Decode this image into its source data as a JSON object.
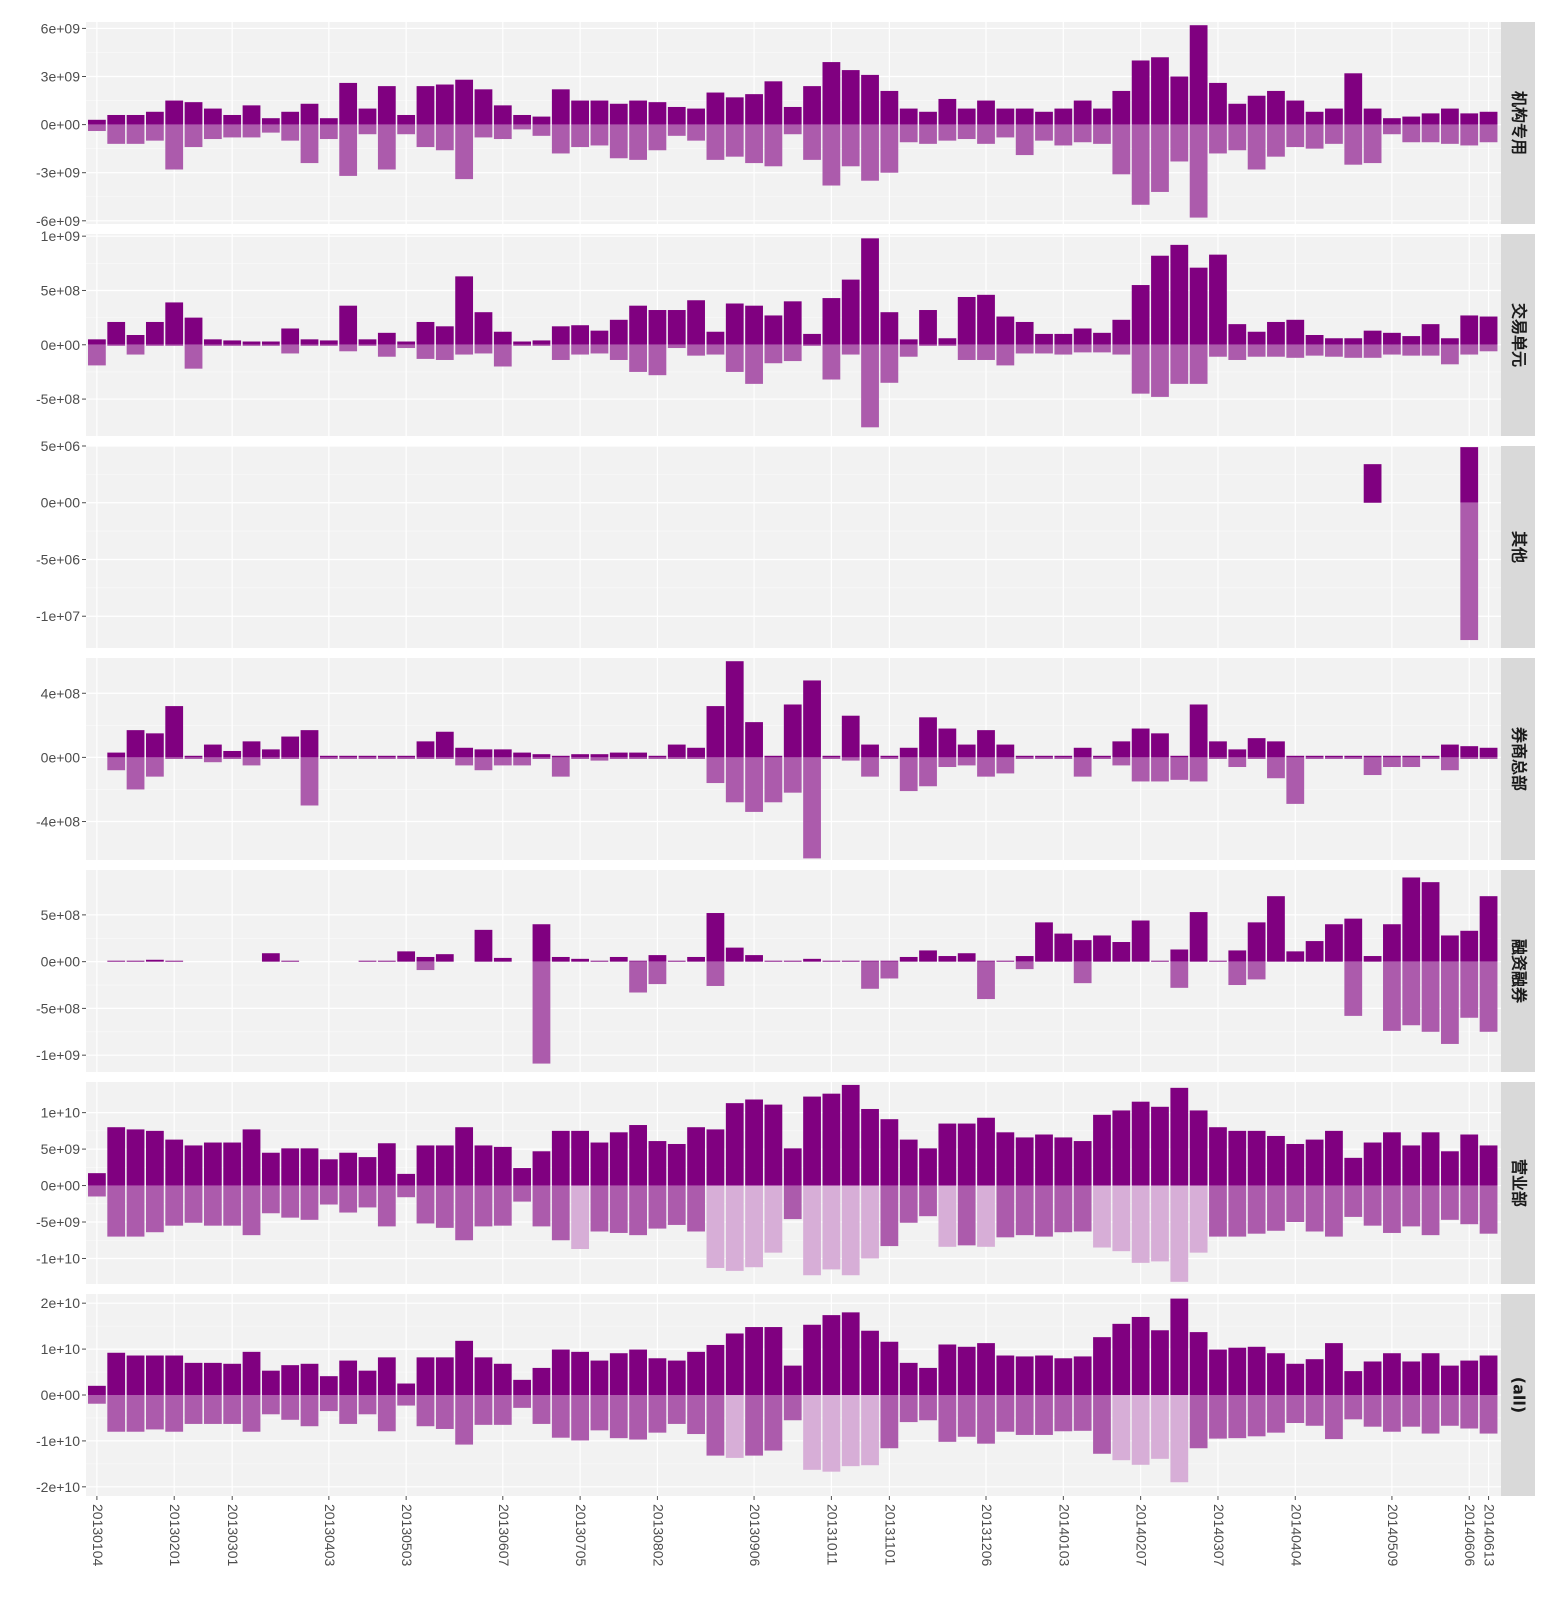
{
  "title": "",
  "colors": {
    "buy": "#800080",
    "sell": "#ac5bac",
    "sell_light": "#d7aed7",
    "panel_bg": "#f2f2f2",
    "strip_bg": "#d9d9d9"
  },
  "chart_data": {
    "type": "bar",
    "layout": "faceted",
    "xlabel": "",
    "ylabel": "",
    "grid": true,
    "x_tick_labels": [
      "20130104",
      "20130201",
      "20130301",
      "20130403",
      "20130503",
      "20130607",
      "20130705",
      "20130802",
      "20130906",
      "20131011",
      "20131101",
      "20131206",
      "20140103",
      "20140207",
      "20140307",
      "20140404",
      "20140509",
      "20140606",
      "20140613"
    ],
    "facets": [
      {
        "name": "机构专用",
        "y_tick_labels": [
          "6e+09",
          "3e+09",
          "0e+00",
          "-3e+09",
          "-6e+09"
        ],
        "y_tick_values": [
          6000000000.0,
          3000000000.0,
          0,
          -3000000000.0,
          -6000000000.0
        ],
        "ylim": [
          -6200000000.0,
          6400000000.0
        ],
        "buy_e9": [
          0.3,
          0.6,
          0.6,
          0.8,
          1.5,
          1.4,
          1.0,
          0.6,
          1.2,
          0.4,
          0.8,
          1.3,
          0.4,
          2.6,
          1.0,
          2.4,
          0.6,
          2.4,
          2.5,
          2.8,
          2.2,
          1.2,
          0.6,
          0.5,
          2.2,
          1.5,
          1.5,
          1.3,
          1.5,
          1.4,
          1.1,
          1.0,
          2.0,
          1.7,
          1.9,
          2.7,
          1.1,
          2.4,
          3.9,
          3.4,
          3.1,
          2.1,
          1.0,
          0.8,
          1.6,
          1.0,
          1.5,
          1.0,
          1.0,
          0.8,
          1.0,
          1.5,
          1.0,
          2.1,
          4.0,
          4.2,
          3.0,
          6.2,
          2.6,
          1.3,
          1.8,
          2.1,
          1.5,
          0.8,
          1.0,
          3.2,
          1.0,
          0.4,
          0.5,
          0.7,
          1.0,
          0.7,
          0.8
        ],
        "sell_e9": [
          0.4,
          1.2,
          1.2,
          1.0,
          2.8,
          1.4,
          0.9,
          0.8,
          0.8,
          0.5,
          1.0,
          2.4,
          0.9,
          3.2,
          0.6,
          2.8,
          0.6,
          1.4,
          1.6,
          3.4,
          0.8,
          0.9,
          0.3,
          0.7,
          1.8,
          1.4,
          1.3,
          2.1,
          2.2,
          1.6,
          0.7,
          1.0,
          2.2,
          2.0,
          2.4,
          2.6,
          0.6,
          2.2,
          3.8,
          2.6,
          3.5,
          3.0,
          1.1,
          1.2,
          1.0,
          0.9,
          1.2,
          0.8,
          1.9,
          1.0,
          1.3,
          1.1,
          1.2,
          3.1,
          5.0,
          4.2,
          2.3,
          5.8,
          1.8,
          1.6,
          2.8,
          2.0,
          1.4,
          1.5,
          1.2,
          2.5,
          2.4,
          0.6,
          1.1,
          1.1,
          1.2,
          1.3,
          1.1
        ]
      },
      {
        "name": "交易单元",
        "y_tick_labels": [
          "1e+09",
          "5e+08",
          "0e+00",
          "-5e+08"
        ],
        "y_tick_values": [
          1000000000.0,
          500000000.0,
          0,
          -500000000.0
        ],
        "ylim": [
          -840000000.0,
          1020000000.0
        ],
        "buy_e8": [
          0.5,
          2.1,
          0.9,
          2.1,
          3.9,
          2.5,
          0.5,
          0.4,
          0.3,
          0.3,
          1.5,
          0.5,
          0.4,
          3.6,
          0.5,
          1.1,
          0.3,
          2.1,
          1.7,
          6.3,
          3.0,
          1.2,
          0.3,
          0.4,
          1.7,
          1.8,
          1.3,
          2.3,
          3.6,
          3.2,
          3.2,
          4.1,
          1.2,
          3.8,
          3.6,
          2.7,
          4.0,
          1.0,
          4.3,
          6.0,
          9.8,
          3.0,
          0.5,
          3.2,
          0.6,
          4.4,
          4.6,
          2.6,
          2.1,
          1.0,
          1.0,
          1.5,
          1.1,
          2.3,
          5.5,
          8.2,
          9.2,
          7.1,
          8.3,
          1.9,
          1.2,
          2.1,
          2.3,
          0.9,
          0.6,
          0.6,
          1.3,
          1.1,
          0.8,
          1.9,
          0.6,
          2.7,
          2.6
        ],
        "sell_e8": [
          1.9,
          0.1,
          0.9,
          0.1,
          0.1,
          2.2,
          0.1,
          0.1,
          0.1,
          0.1,
          0.8,
          0.1,
          0.1,
          0.6,
          0.1,
          1.1,
          0.3,
          1.3,
          1.4,
          0.9,
          0.8,
          2.0,
          0.1,
          0.1,
          1.4,
          0.9,
          0.8,
          1.4,
          2.5,
          2.8,
          0.3,
          1.0,
          0.9,
          2.5,
          3.6,
          1.7,
          1.5,
          0.1,
          3.2,
          0.9,
          7.6,
          3.5,
          1.1,
          0.1,
          0.1,
          1.4,
          1.4,
          1.9,
          0.8,
          0.8,
          0.9,
          0.7,
          0.7,
          0.9,
          4.5,
          4.8,
          3.6,
          3.6,
          1.1,
          1.4,
          1.1,
          1.1,
          1.2,
          1.0,
          1.1,
          1.2,
          1.2,
          0.9,
          1.0,
          1.0,
          1.8,
          0.9,
          0.6
        ]
      },
      {
        "name": "其他",
        "y_tick_labels": [
          "5e+06",
          "0e+00",
          "-5e+06",
          "-1e+07"
        ],
        "y_tick_values": [
          5000000.0,
          0,
          -5000000.0,
          -10000000.0
        ],
        "ylim": [
          -12800000.0,
          5000000.0
        ],
        "bars": [
          {
            "index": 66,
            "buy_e6": 3.4,
            "sell_e6": 0
          },
          {
            "index": 71,
            "buy_e6": 4.9,
            "sell_e6": 12.1
          }
        ]
      },
      {
        "name": "券商总部",
        "y_tick_labels": [
          "4e+08",
          "0e+00",
          "-4e+08"
        ],
        "y_tick_values": [
          400000000.0,
          0,
          -400000000.0
        ],
        "ylim": [
          -640000000.0,
          620000000.0
        ],
        "buy_e8": [
          0,
          0.3,
          1.7,
          1.5,
          3.2,
          0.1,
          0.8,
          0.4,
          1.0,
          0.5,
          1.3,
          1.7,
          0.1,
          0.1,
          0.1,
          0.1,
          0.1,
          1.0,
          1.6,
          0.6,
          0.5,
          0.5,
          0.3,
          0.2,
          0.1,
          0.2,
          0.2,
          0.3,
          0.3,
          0.1,
          0.8,
          0.6,
          3.2,
          6.0,
          2.2,
          0.1,
          3.3,
          4.8,
          0.1,
          2.6,
          0.8,
          0.1,
          0.6,
          2.5,
          1.8,
          0.8,
          1.7,
          0.8,
          0.1,
          0.1,
          0.1,
          0.6,
          0.1,
          1.0,
          1.8,
          1.5,
          0.1,
          3.3,
          1.0,
          0.5,
          1.2,
          1.0,
          0.1,
          0.1,
          0.1,
          0.1,
          0.1,
          0.1,
          0.1,
          0.1,
          0.8,
          0.7,
          0.6
        ],
        "sell_e8": [
          0,
          0.8,
          2.0,
          1.2,
          0.1,
          0.1,
          0.3,
          0.1,
          0.5,
          0.1,
          0.1,
          3.0,
          0.1,
          0.1,
          0.1,
          0.1,
          0.1,
          0.1,
          0.1,
          0.5,
          0.8,
          0.5,
          0.5,
          0.1,
          1.2,
          0.1,
          0.2,
          0.1,
          0.1,
          0.1,
          0.1,
          0.1,
          1.6,
          2.8,
          3.4,
          2.8,
          2.2,
          6.3,
          0.1,
          0.2,
          1.2,
          0.1,
          2.1,
          1.8,
          0.6,
          0.5,
          1.2,
          1.0,
          0.1,
          0.1,
          0.1,
          1.2,
          0.1,
          0.5,
          1.5,
          1.5,
          1.4,
          1.5,
          0.1,
          0.6,
          0.1,
          1.3,
          2.9,
          0.1,
          0.1,
          0.1,
          1.1,
          0.6,
          0.6,
          0.1,
          0.8,
          0.1,
          0.1
        ]
      },
      {
        "name": "融资融券",
        "y_tick_labels": [
          "5e+08",
          "0e+00",
          "-5e+08",
          "-1e+09"
        ],
        "y_tick_values": [
          500000000.0,
          0,
          -500000000.0,
          -1000000000.0
        ],
        "ylim": [
          -1180000000.0,
          980000000.0
        ],
        "buy_e8": [
          0,
          0.1,
          0.1,
          0.2,
          0.1,
          0,
          0,
          0,
          0,
          0.9,
          0.1,
          0,
          0,
          0,
          0.1,
          0.1,
          1.1,
          0.5,
          0.8,
          0,
          3.4,
          0.4,
          0,
          4.0,
          0.5,
          0.3,
          0.1,
          0.5,
          0.1,
          0.7,
          0.1,
          0.5,
          5.2,
          1.5,
          0.7,
          0.1,
          0.1,
          0.3,
          0.1,
          0.1,
          0.1,
          0.1,
          0.5,
          1.2,
          0.6,
          0.9,
          0.1,
          0.1,
          0.6,
          4.2,
          3.0,
          2.3,
          2.8,
          2.1,
          4.4,
          0.1,
          1.3,
          5.3,
          0.1,
          1.2,
          4.2,
          7.0,
          1.1,
          2.2,
          4.0,
          4.6,
          0.6,
          4.0,
          9.0,
          8.5,
          2.8,
          3.3,
          7.0
        ],
        "sell_e8": [
          0,
          0,
          0,
          0,
          0,
          0,
          0,
          0,
          0,
          0,
          0,
          0,
          0,
          0,
          0,
          0,
          0,
          0.9,
          0,
          0,
          0,
          0,
          0,
          10.9,
          0,
          0,
          0,
          0,
          3.3,
          2.4,
          0,
          0,
          2.6,
          0,
          0,
          0,
          0,
          0,
          0,
          0,
          2.9,
          1.8,
          0,
          0,
          0,
          0,
          4.0,
          0,
          0.8,
          0,
          0,
          2.3,
          0,
          0,
          0,
          0,
          2.8,
          0,
          0,
          2.5,
          1.9,
          0,
          0,
          0,
          0,
          5.8,
          0,
          7.4,
          6.8,
          7.5,
          8.8,
          6.0,
          7.5
        ]
      },
      {
        "name": "营业部",
        "y_tick_labels": [
          "1e+10",
          "5e+09",
          "0e+00",
          "-5e+09",
          "-1e+10"
        ],
        "y_tick_values": [
          10000000000.0,
          5000000000.0,
          0,
          -5000000000.0,
          -10000000000.0
        ],
        "ylim": [
          -13500000000.0,
          14200000000.0
        ],
        "buy_e9": [
          1.7,
          8.0,
          7.7,
          7.5,
          6.3,
          5.5,
          5.9,
          5.9,
          7.7,
          4.5,
          5.1,
          5.1,
          3.6,
          4.5,
          3.9,
          5.8,
          1.6,
          5.5,
          5.5,
          8.0,
          5.5,
          5.3,
          2.4,
          4.7,
          7.5,
          7.5,
          5.9,
          7.3,
          8.3,
          6.1,
          5.7,
          8.0,
          7.7,
          11.3,
          11.8,
          11.1,
          5.1,
          12.2,
          12.6,
          13.8,
          10.5,
          9.1,
          6.3,
          5.1,
          8.5,
          8.5,
          9.3,
          7.3,
          6.6,
          7.0,
          6.6,
          6.1,
          9.7,
          10.3,
          11.5,
          10.8,
          13.4,
          10.3,
          8.0,
          7.5,
          7.5,
          6.8,
          5.7,
          6.3,
          7.5,
          3.8,
          5.9,
          7.3,
          5.5,
          7.3,
          4.7,
          7.0,
          5.5
        ],
        "sell_e9": [
          1.5,
          7.0,
          7.0,
          6.4,
          5.5,
          5.1,
          5.5,
          5.5,
          6.8,
          3.8,
          4.4,
          4.7,
          2.6,
          3.7,
          3.0,
          5.6,
          1.6,
          5.2,
          5.8,
          7.5,
          5.6,
          5.5,
          2.2,
          5.6,
          7.5,
          8.7,
          6.3,
          6.5,
          6.8,
          5.9,
          5.4,
          6.3,
          11.3,
          11.7,
          11.2,
          9.2,
          4.6,
          12.3,
          11.5,
          12.3,
          10.0,
          8.3,
          5.1,
          4.2,
          8.4,
          8.2,
          8.4,
          7.1,
          6.8,
          7.0,
          6.4,
          6.3,
          8.5,
          9.0,
          10.6,
          10.4,
          13.2,
          9.2,
          7.0,
          7.0,
          6.6,
          6.2,
          5.0,
          6.3,
          7.0,
          4.3,
          5.5,
          6.5,
          5.6,
          6.8,
          4.7,
          5.3,
          6.6
        ]
      },
      {
        "name": "(all)",
        "y_tick_labels": [
          "2e+10",
          "1e+10",
          "0e+00",
          "-1e+10",
          "-2e+10"
        ],
        "y_tick_values": [
          20000000000.0,
          10000000000.0,
          0,
          -10000000000.0,
          -20000000000.0
        ],
        "ylim": [
          -22000000000.0,
          22000000000.0
        ],
        "buy_e9": [
          2.0,
          9.2,
          8.6,
          8.6,
          8.6,
          7.0,
          7.0,
          6.8,
          9.4,
          5.3,
          6.5,
          6.8,
          4.1,
          7.5,
          5.3,
          8.2,
          2.5,
          8.2,
          8.2,
          11.8,
          8.2,
          6.8,
          3.3,
          5.9,
          9.9,
          9.4,
          7.5,
          9.1,
          9.9,
          8.0,
          7.5,
          9.4,
          10.9,
          13.4,
          14.8,
          14.8,
          6.4,
          15.3,
          17.4,
          18.0,
          14.0,
          11.6,
          7.0,
          5.9,
          11.0,
          10.5,
          11.3,
          8.6,
          8.4,
          8.6,
          8.0,
          8.4,
          12.6,
          15.5,
          17.0,
          14.1,
          21.0,
          13.7,
          9.9,
          10.3,
          10.5,
          9.1,
          6.8,
          7.8,
          11.3,
          5.2,
          7.3,
          9.1,
          7.3,
          9.1,
          6.4,
          7.5,
          8.6
        ],
        "sell_e9": [
          1.9,
          8.0,
          8.0,
          7.5,
          8.0,
          6.3,
          6.3,
          6.3,
          8.0,
          4.2,
          5.4,
          6.8,
          3.5,
          6.3,
          4.2,
          7.9,
          2.3,
          6.8,
          7.4,
          10.8,
          6.5,
          6.5,
          2.8,
          6.3,
          9.3,
          9.9,
          7.7,
          9.4,
          9.7,
          8.2,
          6.3,
          8.5,
          13.2,
          13.7,
          13.2,
          12.1,
          5.5,
          16.3,
          16.7,
          15.5,
          15.3,
          11.6,
          5.9,
          5.5,
          10.2,
          9.1,
          10.6,
          8.0,
          8.7,
          8.7,
          7.9,
          7.8,
          12.8,
          14.2,
          15.2,
          13.9,
          19.0,
          11.6,
          9.5,
          9.4,
          9.0,
          8.2,
          6.1,
          6.7,
          9.6,
          5.3,
          6.9,
          8.0,
          6.9,
          8.4,
          6.7,
          7.3,
          8.4
        ]
      }
    ]
  }
}
